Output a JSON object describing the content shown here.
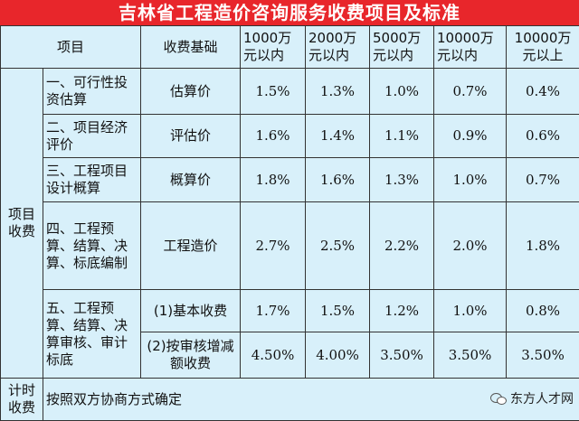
{
  "title": "吉林省工程造价咨询服务收费项目及标准",
  "headers": {
    "item": "项目",
    "basis": "收费基础",
    "col1": "1000万元以内",
    "col2": "2000万元以内",
    "col3": "5000万元以内",
    "col4": "10000万元以内",
    "col5": "10000万元以上"
  },
  "group1_label": "项目收费",
  "rows": [
    {
      "item": "一、可行性投资估算",
      "basis": "估算价",
      "v": [
        "1.5%",
        "1.3%",
        "1.0%",
        "0.7%",
        "0.4%"
      ]
    },
    {
      "item": "二、项目经济评价",
      "basis": "评估价",
      "v": [
        "1.6%",
        "1.4%",
        "1.1%",
        "0.9%",
        "0.6%"
      ]
    },
    {
      "item": "三、工程项目设计概算",
      "basis": "概算价",
      "v": [
        "1.8%",
        "1.6%",
        "1.3%",
        "1.0%",
        "0.7%"
      ]
    },
    {
      "item": "四、工程预算、结算、决算、标底编制",
      "basis": "工程造价",
      "v": [
        "2.7%",
        "2.5%",
        "2.2%",
        "2.0%",
        "1.8%"
      ]
    }
  ],
  "row5": {
    "item": "五、工程预算、结算、决算审核、审计标底",
    "sub1": {
      "basis": "(1)基本收费",
      "v": [
        "1.7%",
        "1.5%",
        "1.2%",
        "1.0%",
        "0.8%"
      ]
    },
    "sub2": {
      "basis": "(2)按审核增减额收费",
      "v": [
        "4.50%",
        "4.00%",
        "3.50%",
        "3.50%",
        "3.50%"
      ]
    }
  },
  "group2_label": "计时收费",
  "group2_text": "按照双方协商方式确定",
  "watermark": "东方人才网",
  "watermark_icon": "wechat-icon"
}
